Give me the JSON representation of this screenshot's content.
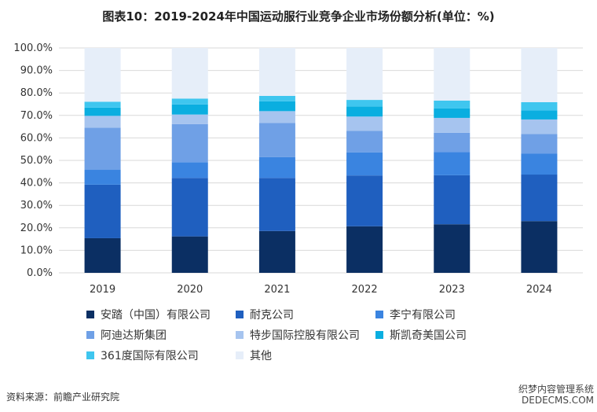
{
  "chart_data": {
    "type": "bar",
    "stacked": true,
    "title": "图表10：2019-2024年中国运动服行业竞争企业市场份额分析(单位：%)",
    "categories": [
      "2019",
      "2020",
      "2021",
      "2022",
      "2023",
      "2024"
    ],
    "ylim": [
      0,
      100
    ],
    "yticks": [
      "0.0%",
      "10.0%",
      "20.0%",
      "30.0%",
      "40.0%",
      "50.0%",
      "60.0%",
      "70.0%",
      "80.0%",
      "90.0%",
      "100.0%"
    ],
    "grid": true,
    "legend_position": "bottom",
    "series": [
      {
        "name": "安踏（中国）有限公司",
        "color": "#0b2f63",
        "values": [
          15.4,
          16.2,
          18.6,
          20.7,
          21.6,
          23.0
        ]
      },
      {
        "name": "耐克公司",
        "color": "#1f5fbf",
        "values": [
          23.8,
          26.0,
          23.6,
          22.6,
          21.8,
          20.7
        ]
      },
      {
        "name": "李宁有限公司",
        "color": "#3a84e0",
        "values": [
          6.6,
          7.0,
          9.3,
          10.3,
          10.3,
          9.4
        ]
      },
      {
        "name": "阿迪达斯集团",
        "color": "#6fa0e6",
        "values": [
          18.7,
          16.9,
          15.2,
          9.5,
          8.6,
          8.6
        ]
      },
      {
        "name": "特步国际控股有限公司",
        "color": "#a6c4ef",
        "values": [
          5.3,
          4.3,
          5.2,
          6.4,
          6.6,
          6.5
        ]
      },
      {
        "name": "斯凯奇美国公司",
        "color": "#0aaee0",
        "values": [
          3.7,
          4.5,
          4.4,
          4.5,
          4.2,
          4.1
        ]
      },
      {
        "name": "361度国际有限公司",
        "color": "#3fc6ef",
        "values": [
          2.6,
          2.6,
          2.4,
          2.9,
          3.5,
          3.6
        ]
      },
      {
        "name": "其他",
        "color": "#e6eef9",
        "values": [
          23.9,
          22.5,
          21.3,
          23.1,
          23.4,
          24.1
        ]
      }
    ]
  },
  "footer": {
    "source": "资料来源：前瞻产业研究院",
    "watermark_line1": "织梦内容管理系统",
    "watermark_line2": "DEDECMS.COM"
  }
}
